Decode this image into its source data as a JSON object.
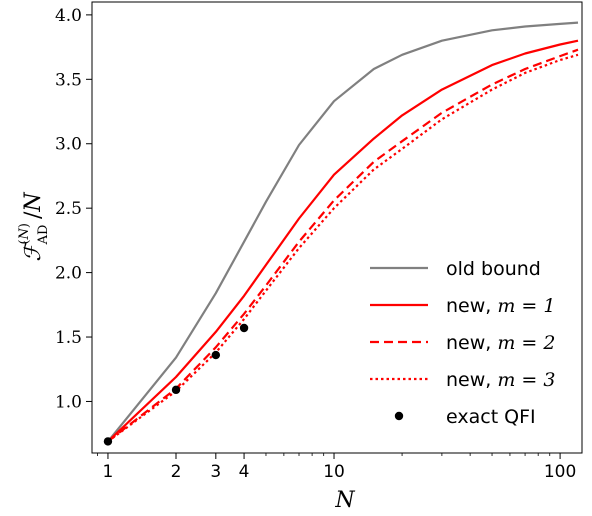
{
  "chart_data": {
    "type": "line",
    "xlabel": "N",
    "ylabel": "F_AD^(N)/N",
    "x_scale": "log",
    "xlim": [
      0.85,
      125
    ],
    "ylim": [
      0.6,
      4.1
    ],
    "x_ticks": [
      1,
      2,
      3,
      4,
      10,
      100
    ],
    "x_tick_labels": [
      "1",
      "2",
      "3",
      "4",
      "10",
      "100"
    ],
    "y_ticks": [
      1.0,
      1.5,
      2.0,
      2.5,
      3.0,
      3.5,
      4.0
    ],
    "y_tick_labels": [
      "1.0",
      "1.5",
      "2.0",
      "2.5",
      "3.0",
      "3.5",
      "4.0"
    ],
    "legend_position": "lower-right",
    "series": [
      {
        "name": "old bound",
        "color": "#808080",
        "style": "solid",
        "x": [
          1,
          2,
          3,
          4,
          5,
          7,
          10,
          15,
          20,
          30,
          50,
          70,
          100,
          120
        ],
        "y": [
          0.69,
          1.34,
          1.84,
          2.24,
          2.55,
          2.99,
          3.33,
          3.58,
          3.69,
          3.8,
          3.88,
          3.91,
          3.93,
          3.94
        ]
      },
      {
        "name": "new, m = 1",
        "color": "#ff0000",
        "style": "solid",
        "x": [
          1,
          2,
          3,
          4,
          5,
          7,
          10,
          15,
          20,
          30,
          50,
          70,
          100,
          120
        ],
        "y": [
          0.69,
          1.19,
          1.54,
          1.82,
          2.06,
          2.42,
          2.76,
          3.04,
          3.22,
          3.42,
          3.61,
          3.7,
          3.77,
          3.8
        ]
      },
      {
        "name": "new, m = 2",
        "color": "#ff0000",
        "style": "dashed",
        "x": [
          1,
          2,
          3,
          4,
          5,
          7,
          10,
          15,
          20,
          30,
          50,
          70,
          100,
          120
        ],
        "y": [
          0.69,
          1.1,
          1.42,
          1.68,
          1.9,
          2.24,
          2.56,
          2.86,
          3.02,
          3.24,
          3.46,
          3.58,
          3.68,
          3.73
        ]
      },
      {
        "name": "new, m = 3",
        "color": "#ff0000",
        "style": "dotted",
        "x": [
          1,
          2,
          3,
          4,
          5,
          7,
          10,
          15,
          20,
          30,
          50,
          70,
          100,
          120
        ],
        "y": [
          0.69,
          1.08,
          1.38,
          1.64,
          1.86,
          2.19,
          2.5,
          2.8,
          2.96,
          3.19,
          3.42,
          3.55,
          3.65,
          3.69
        ]
      },
      {
        "name": "exact QFI",
        "color": "#000000",
        "style": "markers",
        "x": [
          1,
          2,
          3,
          4
        ],
        "y": [
          0.69,
          1.09,
          1.36,
          1.57
        ]
      }
    ]
  }
}
